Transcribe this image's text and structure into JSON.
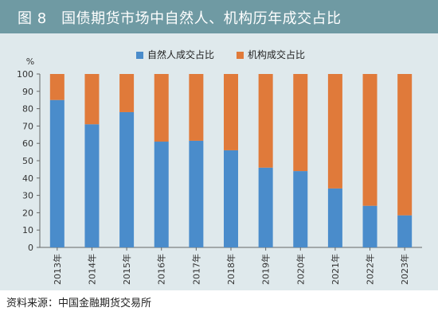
{
  "figure": {
    "title": "图 8　国债期货市场中自然人、机构历年成交占比",
    "source": "资料来源：中国金融期货交易所"
  },
  "colors": {
    "title_bar": "#6f9aa3",
    "panel": "#dfe9ec",
    "series_individual": "#4a8ccb",
    "series_institution": "#e07a3a"
  },
  "chart_data": {
    "type": "bar",
    "stacked": true,
    "categories": [
      "2013年",
      "2014年",
      "2015年",
      "2016年",
      "2017年",
      "2018年",
      "2019年",
      "2020年",
      "2021年",
      "2022年",
      "2023年"
    ],
    "series": [
      {
        "name": "自然人成交占比",
        "values": [
          85,
          71,
          78,
          61,
          61.5,
          56,
          46,
          44,
          34,
          24,
          18.5
        ]
      },
      {
        "name": "机构成交占比",
        "values": [
          15,
          29,
          22,
          39,
          38.5,
          44,
          54,
          56,
          66,
          76,
          81.5
        ]
      }
    ],
    "ylabel": "%",
    "ylim": [
      0,
      100
    ],
    "yticks": [
      0,
      10,
      20,
      30,
      40,
      50,
      60,
      70,
      80,
      90,
      100
    ],
    "legend": "top-center",
    "grid": false
  }
}
